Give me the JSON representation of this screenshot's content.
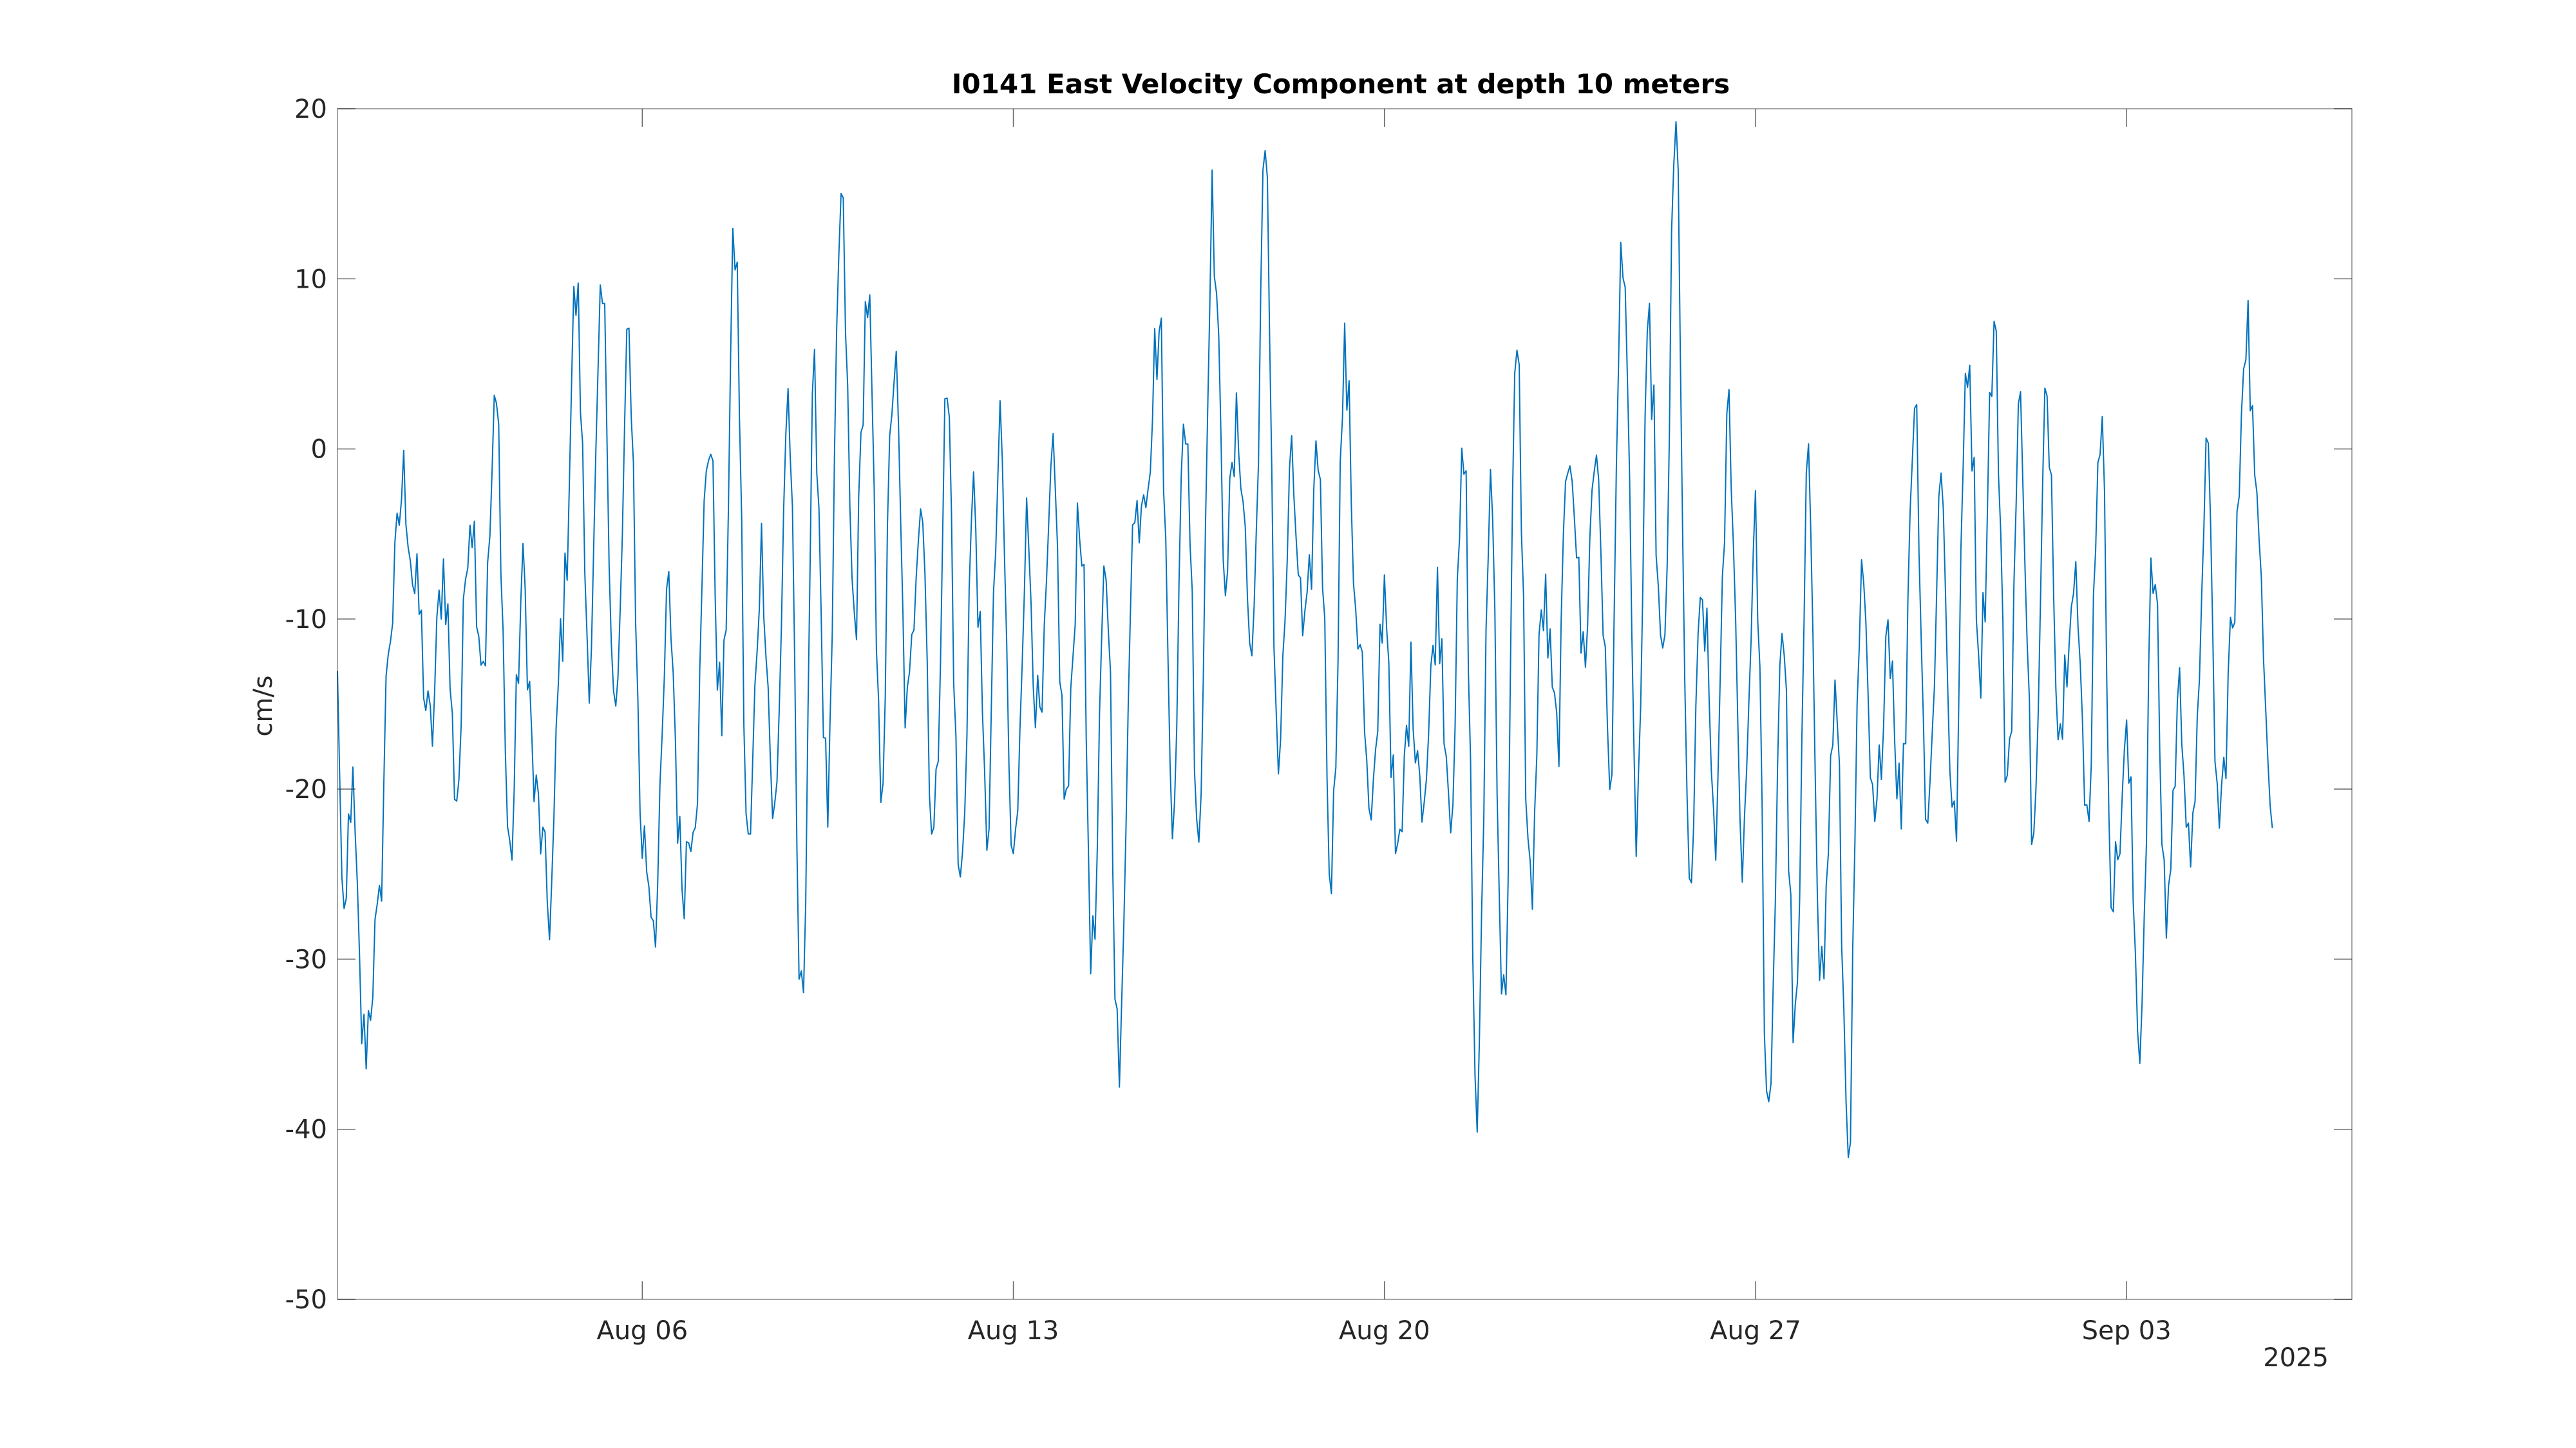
{
  "chart_data": {
    "type": "line",
    "title": "I0141 East Velocity Component at depth 10 meters",
    "xlabel": "",
    "ylabel": "cm/s",
    "year_label": "2025",
    "xlim": [
      "2025-07-31T06:00",
      "2025-09-07T06:00"
    ],
    "ylim": [
      -50,
      20
    ],
    "yticks": [
      20,
      10,
      0,
      -10,
      -20,
      -30,
      -40,
      -50
    ],
    "xticks": [
      {
        "date": "2025-08-06",
        "label": "Aug 06"
      },
      {
        "date": "2025-08-13",
        "label": "Aug 13"
      },
      {
        "date": "2025-08-20",
        "label": "Aug 20"
      },
      {
        "date": "2025-08-27",
        "label": "Aug 27"
      },
      {
        "date": "2025-09-03",
        "label": "Sep 03"
      }
    ],
    "grid": false,
    "line_color": "#0072bd",
    "series": [
      {
        "name": "",
        "step_hours": 1,
        "start": "2025-07-31T06:00",
        "anchors": [
          [
            "2025-07-31T06:00",
            -14
          ],
          [
            "2025-07-31T09:00",
            -30
          ],
          [
            "2025-07-31T12:00",
            -20
          ],
          [
            "2025-07-31T18:00",
            -35
          ],
          [
            "2025-08-01T00:00",
            -29
          ],
          [
            "2025-08-01T06:00",
            -10
          ],
          [
            "2025-08-01T12:00",
            -2
          ],
          [
            "2025-08-01T18:00",
            -9
          ],
          [
            "2025-08-02T00:00",
            -17
          ],
          [
            "2025-08-02T06:00",
            -7
          ],
          [
            "2025-08-02T12:00",
            -20
          ],
          [
            "2025-08-02T18:00",
            -3
          ],
          [
            "2025-08-03T00:00",
            -12
          ],
          [
            "2025-08-03T06:00",
            2
          ],
          [
            "2025-08-03T12:00",
            -24
          ],
          [
            "2025-08-03T18:00",
            -8
          ],
          [
            "2025-08-04T00:00",
            -21
          ],
          [
            "2025-08-04T06:00",
            -27
          ],
          [
            "2025-08-04T12:00",
            -10
          ],
          [
            "2025-08-04T18:00",
            9
          ],
          [
            "2025-08-05T00:00",
            -12
          ],
          [
            "2025-08-05T06:00",
            8
          ],
          [
            "2025-08-05T12:00",
            -16
          ],
          [
            "2025-08-05T18:00",
            6
          ],
          [
            "2025-08-06T00:00",
            -23
          ],
          [
            "2025-08-06T06:00",
            -27
          ],
          [
            "2025-08-06T12:00",
            -9
          ],
          [
            "2025-08-06T18:00",
            -25
          ],
          [
            "2025-08-07T00:00",
            -20
          ],
          [
            "2025-08-07T06:00",
            1
          ],
          [
            "2025-08-07T12:00",
            -16
          ],
          [
            "2025-08-07T18:00",
            12
          ],
          [
            "2025-08-08T00:00",
            -24
          ],
          [
            "2025-08-08T06:00",
            -6
          ],
          [
            "2025-08-08T12:00",
            -22
          ],
          [
            "2025-08-08T18:00",
            3
          ],
          [
            "2025-08-09T00:00",
            -33
          ],
          [
            "2025-08-09T06:00",
            3
          ],
          [
            "2025-08-09T12:00",
            -21
          ],
          [
            "2025-08-09T18:00",
            14
          ],
          [
            "2025-08-10T00:00",
            -10
          ],
          [
            "2025-08-10T06:00",
            9
          ],
          [
            "2025-08-10T12:00",
            -19
          ],
          [
            "2025-08-10T18:00",
            5
          ],
          [
            "2025-08-11T00:00",
            -16
          ],
          [
            "2025-08-11T06:00",
            -2
          ],
          [
            "2025-08-11T12:00",
            -23
          ],
          [
            "2025-08-11T18:00",
            3
          ],
          [
            "2025-08-12T00:00",
            -26
          ],
          [
            "2025-08-12T06:00",
            -3
          ],
          [
            "2025-08-12T12:00",
            -22
          ],
          [
            "2025-08-12T18:00",
            0
          ],
          [
            "2025-08-13T00:00",
            -25
          ],
          [
            "2025-08-13T06:00",
            -5
          ],
          [
            "2025-08-13T12:00",
            -17
          ],
          [
            "2025-08-13T18:00",
            -2
          ],
          [
            "2025-08-14T00:00",
            -21
          ],
          [
            "2025-08-14T06:00",
            -3
          ],
          [
            "2025-08-14T12:00",
            -30
          ],
          [
            "2025-08-14T18:00",
            -7
          ],
          [
            "2025-08-15T00:00",
            -37
          ],
          [
            "2025-08-15T06:00",
            -5
          ],
          [
            "2025-08-15T12:00",
            -1
          ],
          [
            "2025-08-15T18:00",
            7
          ],
          [
            "2025-08-16T00:00",
            -20
          ],
          [
            "2025-08-16T06:00",
            2
          ],
          [
            "2025-08-16T12:00",
            -22
          ],
          [
            "2025-08-16T18:00",
            14
          ],
          [
            "2025-08-17T00:00",
            -6
          ],
          [
            "2025-08-17T06:00",
            1
          ],
          [
            "2025-08-17T12:00",
            -12
          ],
          [
            "2025-08-17T18:00",
            16
          ],
          [
            "2025-08-18T00:00",
            -18
          ],
          [
            "2025-08-18T06:00",
            -2
          ],
          [
            "2025-08-18T12:00",
            -12
          ],
          [
            "2025-08-18T18:00",
            0
          ],
          [
            "2025-08-19T00:00",
            -24
          ],
          [
            "2025-08-19T06:00",
            5
          ],
          [
            "2025-08-19T12:00",
            -10
          ],
          [
            "2025-08-19T18:00",
            -23
          ],
          [
            "2025-08-20T00:00",
            -8
          ],
          [
            "2025-08-20T06:00",
            -25
          ],
          [
            "2025-08-20T12:00",
            -14
          ],
          [
            "2025-08-20T18:00",
            -20
          ],
          [
            "2025-08-21T00:00",
            -9
          ],
          [
            "2025-08-21T06:00",
            -20
          ],
          [
            "2025-08-21T12:00",
            -1
          ],
          [
            "2025-08-21T18:00",
            -39
          ],
          [
            "2025-08-22T00:00",
            -2
          ],
          [
            "2025-08-22T06:00",
            -33
          ],
          [
            "2025-08-22T12:00",
            5
          ],
          [
            "2025-08-22T18:00",
            -26
          ],
          [
            "2025-08-23T00:00",
            -9
          ],
          [
            "2025-08-23T06:00",
            -17
          ],
          [
            "2025-08-23T12:00",
            1
          ],
          [
            "2025-08-23T18:00",
            -12
          ],
          [
            "2025-08-24T00:00",
            0
          ],
          [
            "2025-08-24T06:00",
            -19
          ],
          [
            "2025-08-24T12:00",
            13
          ],
          [
            "2025-08-24T18:00",
            -22
          ],
          [
            "2025-08-25T00:00",
            6
          ],
          [
            "2025-08-25T06:00",
            -14
          ],
          [
            "2025-08-25T12:00",
            18
          ],
          [
            "2025-08-25T18:00",
            -26
          ],
          [
            "2025-08-26T00:00",
            -9
          ],
          [
            "2025-08-26T06:00",
            -22
          ],
          [
            "2025-08-26T12:00",
            2
          ],
          [
            "2025-08-26T18:00",
            -23
          ],
          [
            "2025-08-27T00:00",
            -5
          ],
          [
            "2025-08-27T06:00",
            -41
          ],
          [
            "2025-08-27T12:00",
            -10
          ],
          [
            "2025-08-27T18:00",
            -35
          ],
          [
            "2025-08-28T00:00",
            -2
          ],
          [
            "2025-08-28T06:00",
            -31
          ],
          [
            "2025-08-28T12:00",
            -15
          ],
          [
            "2025-08-28T18:00",
            -40
          ],
          [
            "2025-08-29T00:00",
            -9
          ],
          [
            "2025-08-29T06:00",
            -23
          ],
          [
            "2025-08-29T12:00",
            -10
          ],
          [
            "2025-08-29T18:00",
            -21
          ],
          [
            "2025-08-30T00:00",
            3
          ],
          [
            "2025-08-30T06:00",
            -22
          ],
          [
            "2025-08-30T12:00",
            -2
          ],
          [
            "2025-08-30T18:00",
            -23
          ],
          [
            "2025-08-31T00:00",
            6
          ],
          [
            "2025-08-31T06:00",
            -12
          ],
          [
            "2025-08-31T12:00",
            7
          ],
          [
            "2025-08-31T18:00",
            -19
          ],
          [
            "2025-09-01T00:00",
            2
          ],
          [
            "2025-09-01T06:00",
            -23
          ],
          [
            "2025-09-01T12:00",
            3
          ],
          [
            "2025-09-01T18:00",
            -16
          ],
          [
            "2025-09-02T00:00",
            -6
          ],
          [
            "2025-09-02T06:00",
            -22
          ],
          [
            "2025-09-02T12:00",
            2
          ],
          [
            "2025-09-02T18:00",
            -26
          ],
          [
            "2025-09-03T00:00",
            -18
          ],
          [
            "2025-09-03T06:00",
            -34
          ],
          [
            "2025-09-03T12:00",
            -7
          ],
          [
            "2025-09-03T18:00",
            -27
          ],
          [
            "2025-09-04T00:00",
            -15
          ],
          [
            "2025-09-04T06:00",
            -24
          ],
          [
            "2025-09-04T12:00",
            -1
          ],
          [
            "2025-09-04T18:00",
            -22
          ],
          [
            "2025-09-05T00:00",
            -11
          ],
          [
            "2025-09-05T06:00",
            8
          ],
          [
            "2025-09-05T12:00",
            -6
          ],
          [
            "2025-09-05T18:00",
            -20
          ]
        ]
      }
    ]
  }
}
